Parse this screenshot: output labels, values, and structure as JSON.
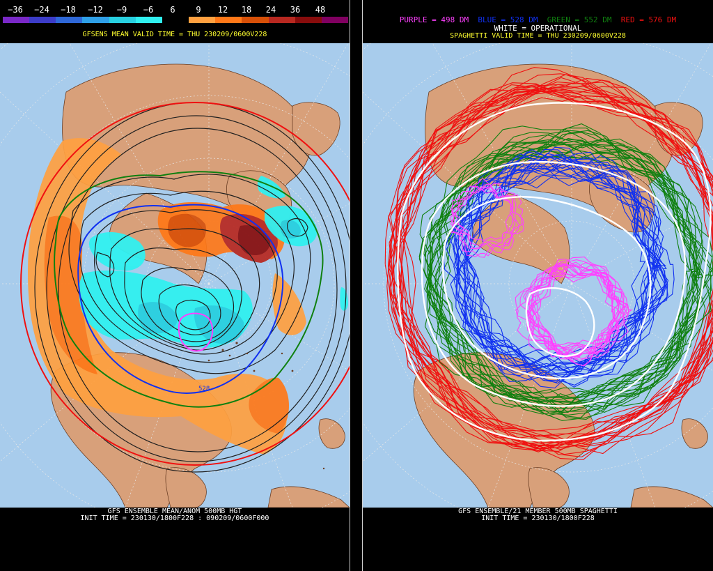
{
  "left": {
    "scale_labels": [
      "−36",
      "−24",
      "−18",
      "−12",
      "−9",
      "−6",
      "6",
      "9",
      "12",
      "18",
      "24",
      "36",
      "48"
    ],
    "scale_colors": [
      "#7a28c8",
      "#3c3cc8",
      "#2f68d8",
      "#2fa0e8",
      "#28d0e0",
      "#30f0f0",
      "#000000",
      "#ffa040",
      "#ff7818",
      "#d85008",
      "#b82820",
      "#880c0c",
      "#800060"
    ],
    "title": "GFSENS MEAN VALID TIME = THU 230209/0600V228",
    "contour_label": "528",
    "footer_line1": "GFS ENSEMBLE MEAN/ANOM 500MB HGT",
    "footer_line2": "INIT TIME = 230130/1800F228 : 090209/0600F000"
  },
  "right": {
    "legend_purple": "PURPLE = 498 DM",
    "legend_blue": "BLUE = 528 DM",
    "legend_green": "GREEN = 552 DM",
    "legend_red": "RED = 576 DM",
    "legend_white": "WHITE = OPERATIONAL",
    "title": "SPAGHETTI VALID TIME = THU 230209/0600V228",
    "footer_line1": "GFS ENSEMBLE/21 MEMBER 500MB SPAGHETTI",
    "footer_line2": "INIT TIME = 230130/1800F228"
  },
  "colors": {
    "ocean": "#a8ccec",
    "land": "#d8a07a",
    "coast": "#6a3e24",
    "grid": "#e8e8e8",
    "title_yellow": "#ffff30",
    "purple": "#ff40ff",
    "blue": "#1030f0",
    "green": "#108010",
    "red": "#f01010",
    "white": "#ffffff"
  }
}
